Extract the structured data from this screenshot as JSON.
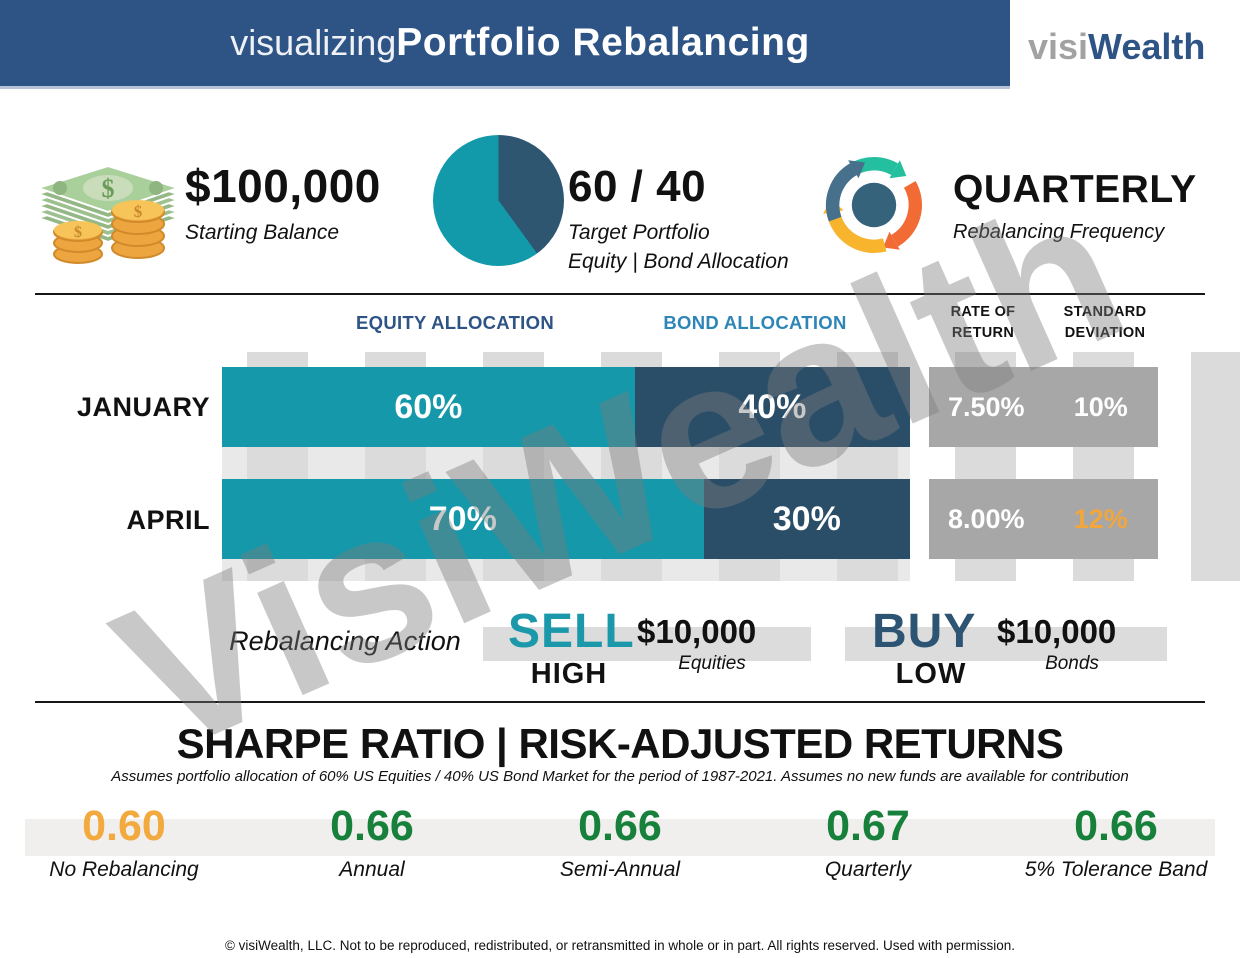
{
  "colors": {
    "header_blue": "#2e5486",
    "bond_header_blue": "#2e86b8",
    "equity_teal": "#1598a9",
    "bond_navy": "#2b4e68",
    "highlight_orange": "#f2a63c",
    "sharpe_green": "#17813b",
    "stats_gray": "#a7a7a7"
  },
  "header": {
    "title_light": "visualizing",
    "title_bold": "Portfolio Rebalancing",
    "logo_gray": "visi",
    "logo_blue": "Wealth"
  },
  "summary": {
    "balance": {
      "value": "$100,000",
      "label": "Starting Balance"
    },
    "allocation": {
      "value": "60 / 40",
      "label_line1": "Target Portfolio",
      "label_line2": "Equity | Bond Allocation"
    },
    "frequency": {
      "value": "QUARTERLY",
      "label": "Rebalancing Frequency"
    }
  },
  "table": {
    "col_equity": "EQUITY ALLOCATION",
    "col_bond": "BOND ALLOCATION",
    "col_rate_1": "RATE OF",
    "col_rate_2": "RETURN",
    "col_std_1": "STANDARD",
    "col_std_2": "DEVIATION",
    "rows": [
      {
        "month": "JANUARY",
        "equity_pct": 60,
        "bond_pct": 40,
        "equity_text": "60%",
        "bond_text": "40%",
        "rate_of_return": "7.50%",
        "std_dev": "10%",
        "std_color": "#ffffff"
      },
      {
        "month": "APRIL",
        "equity_pct": 70,
        "bond_pct": 30,
        "equity_text": "70%",
        "bond_text": "30%",
        "rate_of_return": "8.00%",
        "std_dev": "12%",
        "std_color": "#f2a63c"
      }
    ]
  },
  "action": {
    "label": "Rebalancing Action",
    "items": [
      {
        "verb": "SELL",
        "verb_color": "#1b99aa",
        "qualifier": "HIGH",
        "amount": "$10,000",
        "asset": "Equities"
      },
      {
        "verb": "BUY",
        "verb_color": "#2d5573",
        "qualifier": "LOW",
        "amount": "$10,000",
        "asset": "Bonds"
      }
    ]
  },
  "sharpe": {
    "title": "SHARPE RATIO | RISK-ADJUSTED RETURNS",
    "subtitle": "Assumes portfolio allocation of 60% US Equities / 40% US Bond Market for the period of 1987-2021. Assumes no new funds are available for contribution",
    "values": [
      {
        "value": "0.60",
        "label": "No Rebalancing",
        "color": "#f2a93d"
      },
      {
        "value": "0.66",
        "label": "Annual",
        "color": "#17813b"
      },
      {
        "value": "0.66",
        "label": "Semi-Annual",
        "color": "#17813b"
      },
      {
        "value": "0.67",
        "label": "Quarterly",
        "color": "#17813b"
      },
      {
        "value": "0.66",
        "label": "5% Tolerance Band",
        "color": "#17813b"
      }
    ]
  },
  "watermark": "VisiWealth",
  "footer": "© visiWealth, LLC. Not to be reproduced, redistributed, or retransmitted in whole or in part. All rights reserved. Used with permission.",
  "chart_data": [
    {
      "type": "pie",
      "title": "Target Portfolio Equity | Bond Allocation",
      "labels": [
        "Equity",
        "Bond"
      ],
      "values": [
        60,
        40
      ],
      "colors": [
        "#129aab",
        "#2e5670"
      ]
    },
    {
      "type": "bar",
      "stacked": true,
      "orientation": "horizontal",
      "categories": [
        "JANUARY",
        "APRIL"
      ],
      "series": [
        {
          "name": "Equity Allocation",
          "values": [
            60,
            70
          ],
          "color": "#1598a9"
        },
        {
          "name": "Bond Allocation",
          "values": [
            40,
            30
          ],
          "color": "#2b4e68"
        }
      ],
      "annotations": {
        "rate_of_return": [
          "7.50%",
          "8.00%"
        ],
        "standard_deviation": [
          "10%",
          "12%"
        ]
      }
    },
    {
      "type": "table",
      "title": "Sharpe Ratio | Risk-Adjusted Returns",
      "categories": [
        "No Rebalancing",
        "Annual",
        "Semi-Annual",
        "Quarterly",
        "5% Tolerance Band"
      ],
      "values": [
        0.6,
        0.66,
        0.66,
        0.67,
        0.66
      ]
    }
  ]
}
